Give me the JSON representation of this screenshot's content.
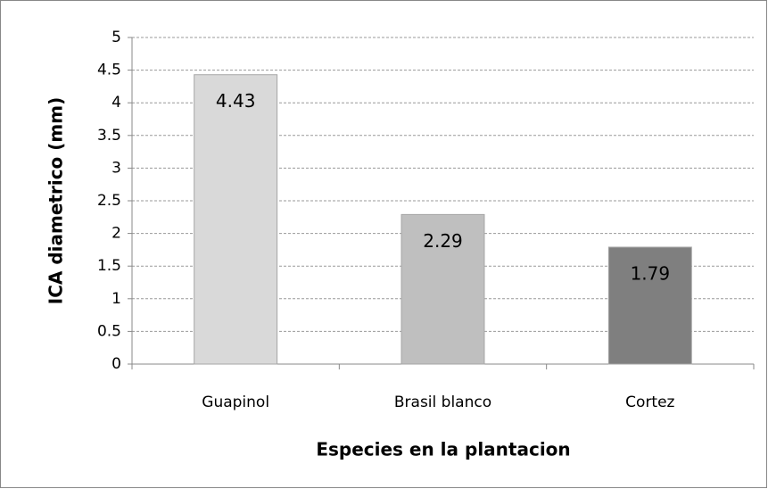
{
  "chart_data": {
    "type": "bar",
    "categories": [
      "Guapinol",
      "Brasil blanco",
      "Cortez"
    ],
    "values": [
      4.43,
      2.29,
      1.79
    ],
    "colors": [
      "#d9d9d9",
      "#bfbfbf",
      "#7f7f7f"
    ],
    "ylabel": "ICA diametrico (mm)",
    "xlabel": "Especies en la plantacion",
    "ylim": [
      0,
      5
    ],
    "yticks": [
      0,
      0.5,
      1,
      1.5,
      2,
      2.5,
      3,
      3.5,
      4,
      4.5,
      5
    ],
    "grid": true
  }
}
